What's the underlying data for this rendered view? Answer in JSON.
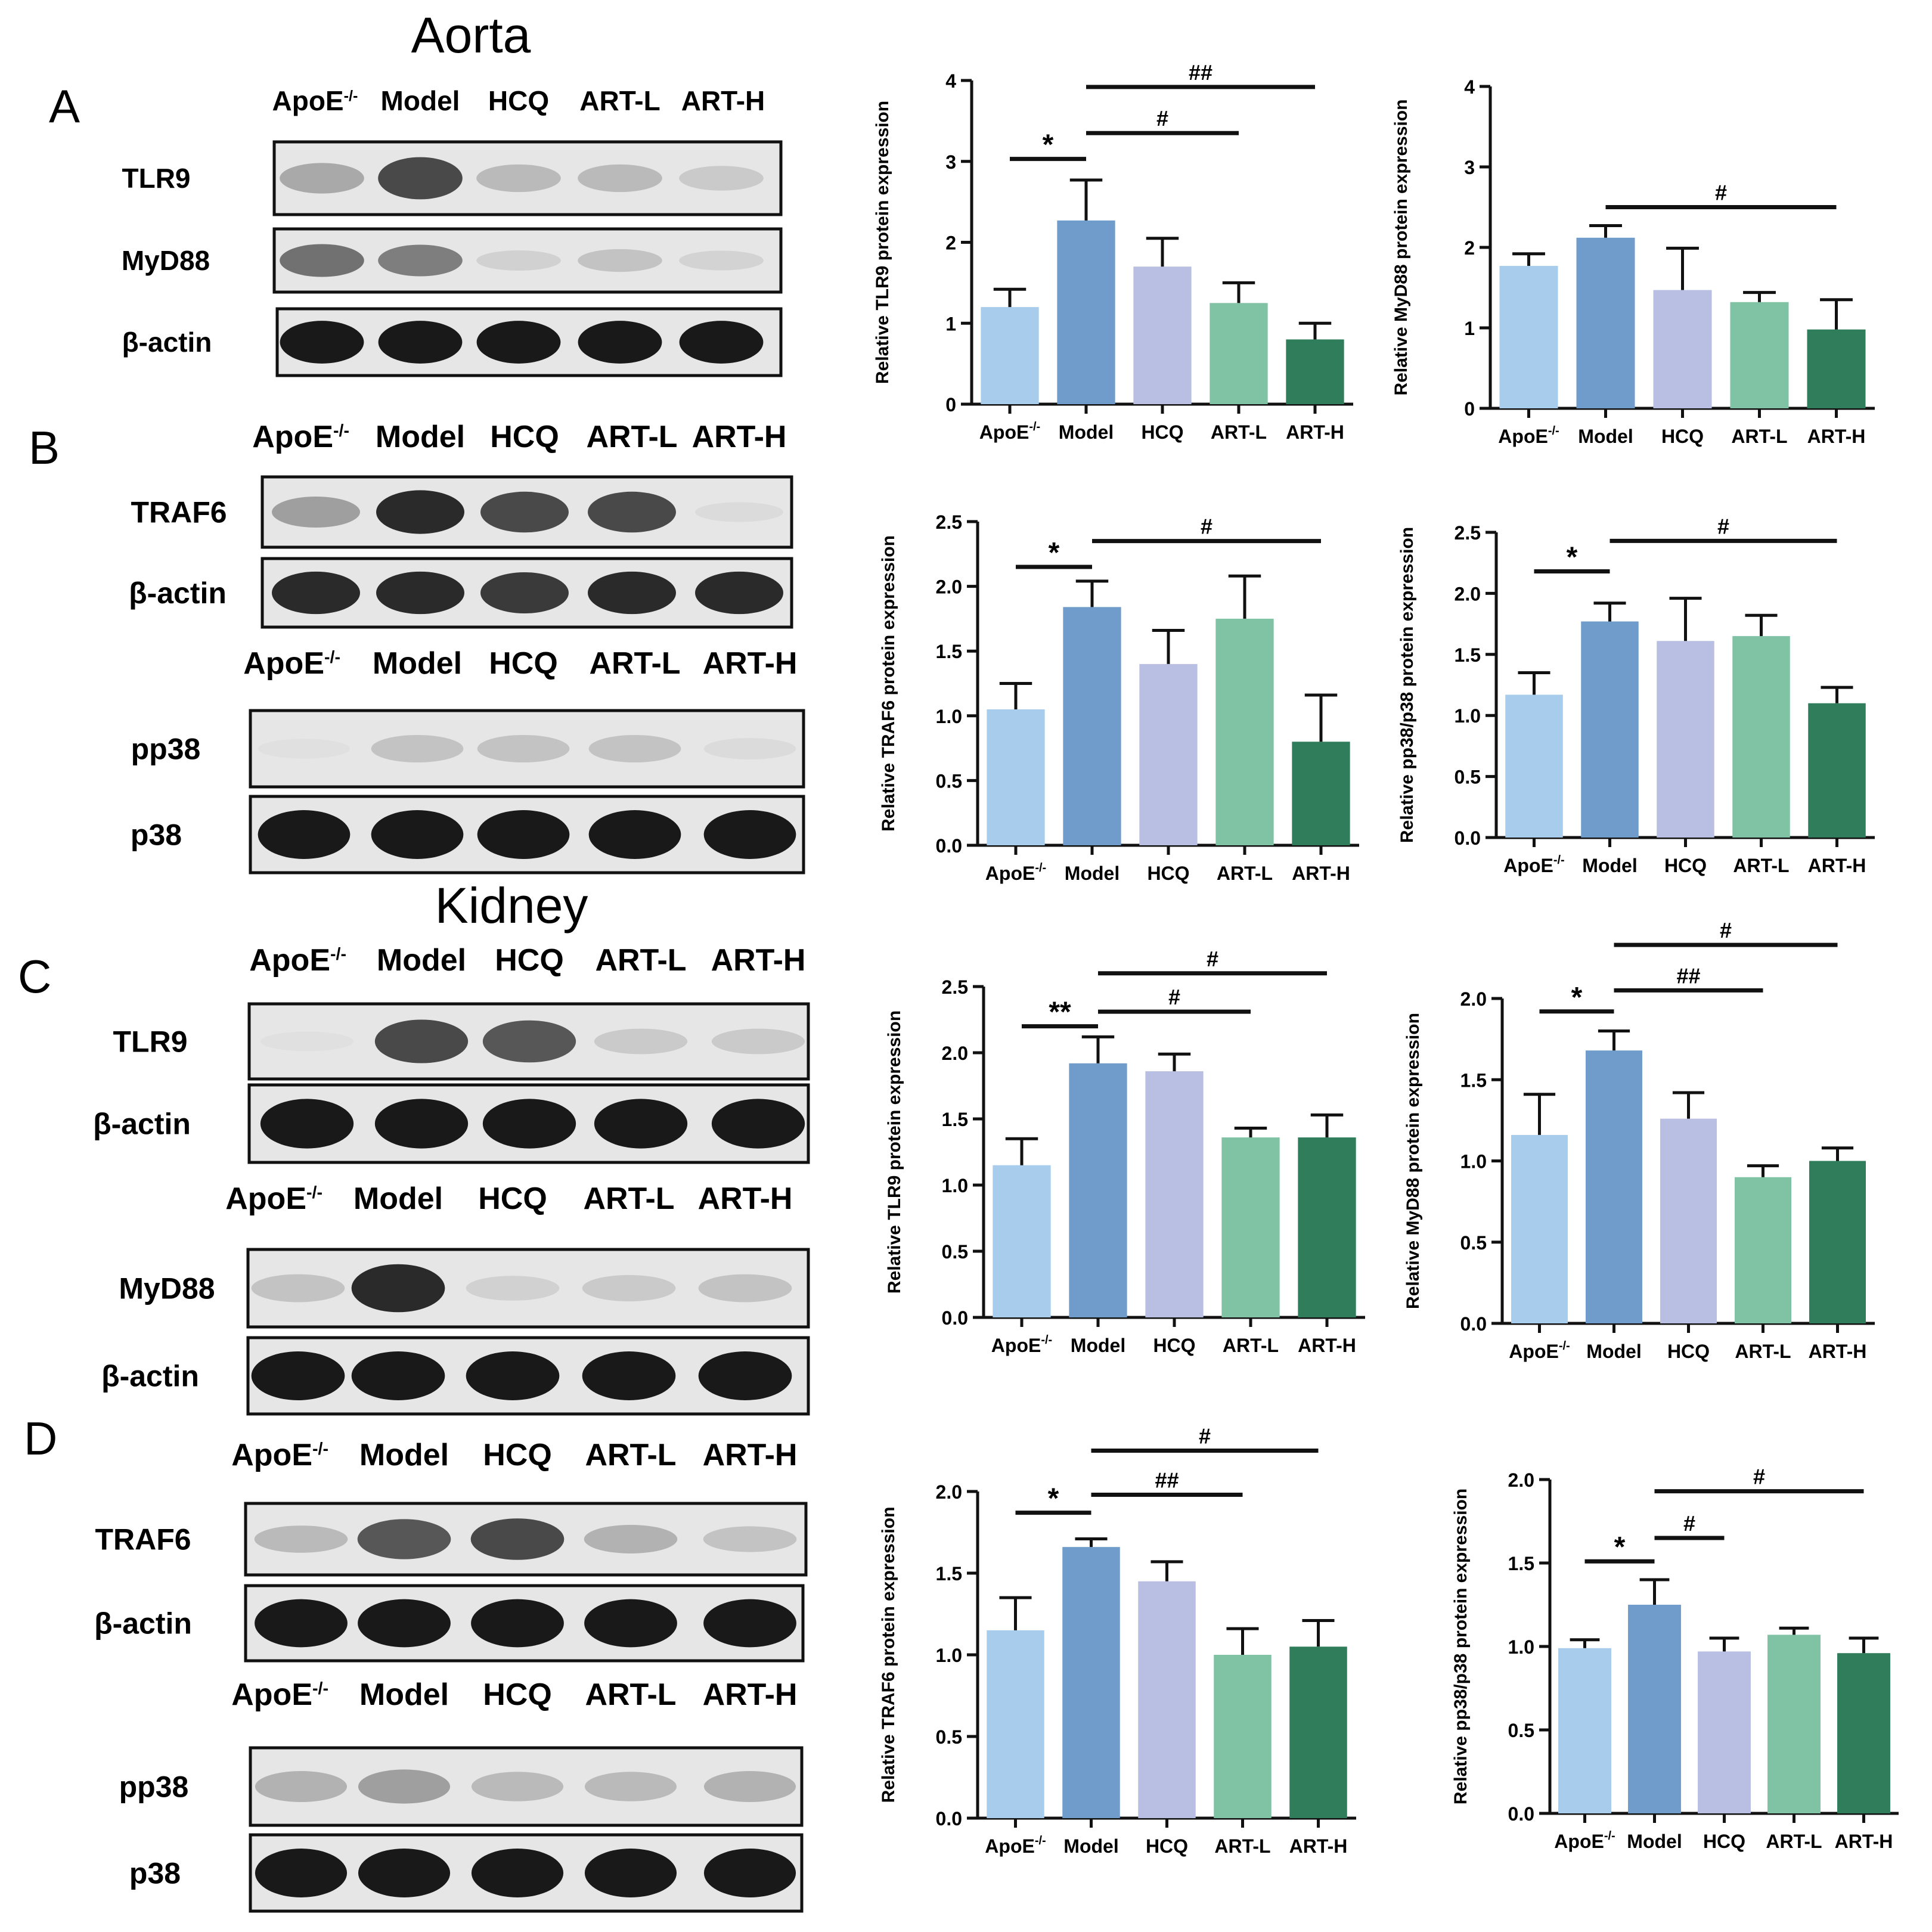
{
  "section_titles": {
    "aorta": "Aorta",
    "kidney": "Kidney"
  },
  "panel_letters": {
    "A": "A",
    "B": "B",
    "C": "C",
    "D": "D"
  },
  "groups": [
    "ApoE",
    "Model",
    "HCQ",
    "ART-L",
    "ART-H"
  ],
  "group_superscript": "-/-",
  "colors": {
    "ApoE": "#a8cdec",
    "Model": "#6f9ccb",
    "HCQ": "#b8bfe2",
    "ART-L": "#7fc2a4",
    "ART-H": "#2f7d5a",
    "blot_bg": "#e6e6e6",
    "band": "#1c1c1c"
  },
  "blots": [
    {
      "proteins": [
        "TLR9",
        "MyD88",
        "β-actin"
      ],
      "intensities": [
        [
          0.45,
          0.85,
          0.35,
          0.35,
          0.25
        ],
        [
          0.7,
          0.65,
          0.2,
          0.3,
          0.18
        ],
        [
          1,
          1,
          1,
          1,
          1
        ]
      ]
    },
    {
      "proteins": [
        "TRAF6",
        "β-actin"
      ],
      "intensities": [
        [
          0.5,
          0.95,
          0.85,
          0.85,
          0.1
        ],
        [
          0.95,
          0.95,
          0.9,
          0.95,
          0.95
        ]
      ]
    },
    {
      "proteins": [
        "pp38",
        "p38"
      ],
      "intensities": [
        [
          0.05,
          0.3,
          0.3,
          0.3,
          0.1
        ],
        [
          1,
          1,
          1,
          1,
          1
        ]
      ]
    },
    {
      "proteins": [
        "TLR9",
        "β-actin"
      ],
      "intensities": [
        [
          0.05,
          0.85,
          0.8,
          0.25,
          0.25
        ],
        [
          1,
          1,
          1,
          1,
          1
        ]
      ]
    },
    {
      "proteins": [
        "MyD88",
        "β-actin"
      ],
      "intensities": [
        [
          0.3,
          0.95,
          0.2,
          0.25,
          0.3
        ],
        [
          1,
          1,
          1,
          1,
          1
        ]
      ]
    },
    {
      "proteins": [
        "TRAF6",
        "β-actin"
      ],
      "intensities": [
        [
          0.35,
          0.8,
          0.85,
          0.4,
          0.3
        ],
        [
          1,
          1,
          1,
          1,
          1
        ]
      ]
    },
    {
      "proteins": [
        "pp38",
        "p38"
      ],
      "intensities": [
        [
          0.4,
          0.5,
          0.35,
          0.35,
          0.4
        ],
        [
          1,
          1,
          1,
          1,
          1
        ]
      ]
    }
  ],
  "chart_data": [
    {
      "type": "bar",
      "ylabel": "Relative TLR9 protein expression",
      "categories": [
        "ApoE",
        "Model",
        "HCQ",
        "ART-L",
        "ART-H"
      ],
      "values": [
        1.2,
        2.27,
        1.7,
        1.25,
        0.8
      ],
      "errors": [
        0.22,
        0.5,
        0.35,
        0.25,
        0.2
      ],
      "ylim": [
        0,
        4
      ],
      "yticks": [
        "0",
        "1",
        "2",
        "3",
        "4"
      ],
      "tickvals": [
        0,
        1,
        2,
        3,
        4
      ],
      "sig": [
        {
          "from": 0,
          "to": 1,
          "label": "*",
          "y": 3.03
        },
        {
          "from": 1,
          "to": 3,
          "label": "#",
          "y": 3.35
        },
        {
          "from": 1,
          "to": 4,
          "label": "##",
          "y": 3.92
        }
      ]
    },
    {
      "type": "bar",
      "ylabel": "Relative MyD88 protein expression",
      "categories": [
        "ApoE",
        "Model",
        "HCQ",
        "ART-L",
        "ART-H"
      ],
      "values": [
        1.77,
        2.12,
        1.47,
        1.32,
        0.98
      ],
      "errors": [
        0.15,
        0.15,
        0.52,
        0.12,
        0.37
      ],
      "ylim": [
        0,
        4
      ],
      "yticks": [
        "0",
        "1",
        "2",
        "3",
        "4"
      ],
      "tickvals": [
        0,
        1,
        2,
        3,
        4
      ],
      "sig": [
        {
          "from": 1,
          "to": 4,
          "label": "#",
          "y": 2.5
        }
      ]
    },
    {
      "type": "bar",
      "ylabel": "Relative TRAF6 protein expression",
      "categories": [
        "ApoE",
        "Model",
        "HCQ",
        "ART-L",
        "ART-H"
      ],
      "values": [
        1.05,
        1.84,
        1.4,
        1.75,
        0.8
      ],
      "errors": [
        0.2,
        0.2,
        0.26,
        0.33,
        0.36
      ],
      "ylim": [
        0,
        2.5
      ],
      "yticks": [
        "0.0",
        "0.5",
        "1.0",
        "1.5",
        "2.0",
        "2.5"
      ],
      "tickvals": [
        0,
        0.5,
        1,
        1.5,
        2,
        2.5
      ],
      "sig": [
        {
          "from": 0,
          "to": 1,
          "label": "*",
          "y": 2.15
        },
        {
          "from": 1,
          "to": 4,
          "label": "#",
          "y": 2.35
        }
      ]
    },
    {
      "type": "bar",
      "ylabel": "Relative pp38/p38 protein expression",
      "categories": [
        "ApoE",
        "Model",
        "HCQ",
        "ART-L",
        "ART-H"
      ],
      "values": [
        1.17,
        1.77,
        1.61,
        1.65,
        1.1
      ],
      "errors": [
        0.18,
        0.15,
        0.35,
        0.17,
        0.13
      ],
      "ylim": [
        0,
        2.5
      ],
      "yticks": [
        "0.0",
        "0.5",
        "1.0",
        "1.5",
        "2.0",
        "2.5"
      ],
      "tickvals": [
        0,
        0.5,
        1,
        1.5,
        2,
        2.5
      ],
      "sig": [
        {
          "from": 0,
          "to": 1,
          "label": "*",
          "y": 2.18
        },
        {
          "from": 1,
          "to": 4,
          "label": "#",
          "y": 2.43
        }
      ]
    },
    {
      "type": "bar",
      "ylabel": "Relative TLR9 protein expression",
      "categories": [
        "ApoE",
        "Model",
        "HCQ",
        "ART-L",
        "ART-H"
      ],
      "values": [
        1.15,
        1.92,
        1.86,
        1.36,
        1.36
      ],
      "errors": [
        0.2,
        0.2,
        0.13,
        0.07,
        0.17
      ],
      "ylim": [
        0,
        2.5
      ],
      "yticks": [
        "0.0",
        "0.5",
        "1.0",
        "1.5",
        "2.0",
        "2.5"
      ],
      "tickvals": [
        0,
        0.5,
        1,
        1.5,
        2,
        2.5
      ],
      "sig": [
        {
          "from": 0,
          "to": 1,
          "label": "**",
          "y": 2.2
        },
        {
          "from": 1,
          "to": 3,
          "label": "#",
          "y": 2.31
        },
        {
          "from": 1,
          "to": 4,
          "label": "#",
          "y": 2.6
        }
      ]
    },
    {
      "type": "bar",
      "ylabel": "Relative MyD88 protein expression",
      "categories": [
        "ApoE",
        "Model",
        "HCQ",
        "ART-L",
        "ART-H"
      ],
      "values": [
        1.16,
        1.68,
        1.26,
        0.9,
        1.0
      ],
      "errors": [
        0.25,
        0.12,
        0.16,
        0.07,
        0.08
      ],
      "ylim": [
        0,
        2.0
      ],
      "yticks": [
        "0.0",
        "0.5",
        "1.0",
        "1.5",
        "2.0"
      ],
      "tickvals": [
        0,
        0.5,
        1,
        1.5,
        2
      ],
      "sig": [
        {
          "from": 0,
          "to": 1,
          "label": "*",
          "y": 1.92
        },
        {
          "from": 1,
          "to": 3,
          "label": "##",
          "y": 2.05
        },
        {
          "from": 1,
          "to": 4,
          "label": "#",
          "y": 2.33
        }
      ]
    },
    {
      "type": "bar",
      "ylabel": "Relative TRAF6 protein expression",
      "categories": [
        "ApoE",
        "Model",
        "HCQ",
        "ART-L",
        "ART-H"
      ],
      "values": [
        1.15,
        1.66,
        1.45,
        1.0,
        1.05
      ],
      "errors": [
        0.2,
        0.05,
        0.12,
        0.16,
        0.16
      ],
      "ylim": [
        0,
        2.0
      ],
      "yticks": [
        "0.0",
        "0.5",
        "1.0",
        "1.5",
        "2.0"
      ],
      "tickvals": [
        0,
        0.5,
        1,
        1.5,
        2
      ],
      "sig": [
        {
          "from": 0,
          "to": 1,
          "label": "*",
          "y": 1.87
        },
        {
          "from": 1,
          "to": 3,
          "label": "##",
          "y": 1.98
        },
        {
          "from": 1,
          "to": 4,
          "label": "#",
          "y": 2.25
        }
      ]
    },
    {
      "type": "bar",
      "ylabel": "Relative pp38/p38 protein expression",
      "categories": [
        "ApoE",
        "Model",
        "HCQ",
        "ART-L",
        "ART-H"
      ],
      "values": [
        0.99,
        1.25,
        0.97,
        1.07,
        0.96
      ],
      "errors": [
        0.05,
        0.15,
        0.08,
        0.04,
        0.09
      ],
      "ylim": [
        0,
        2.0
      ],
      "yticks": [
        "0.0",
        "0.5",
        "1.0",
        "1.5",
        "2.0"
      ],
      "tickvals": [
        0,
        0.5,
        1,
        1.5,
        2
      ],
      "sig": [
        {
          "from": 0,
          "to": 1,
          "label": "*",
          "y": 1.51
        },
        {
          "from": 1,
          "to": 2,
          "label": "#",
          "y": 1.65
        },
        {
          "from": 1,
          "to": 4,
          "label": "#",
          "y": 1.93
        }
      ]
    }
  ]
}
